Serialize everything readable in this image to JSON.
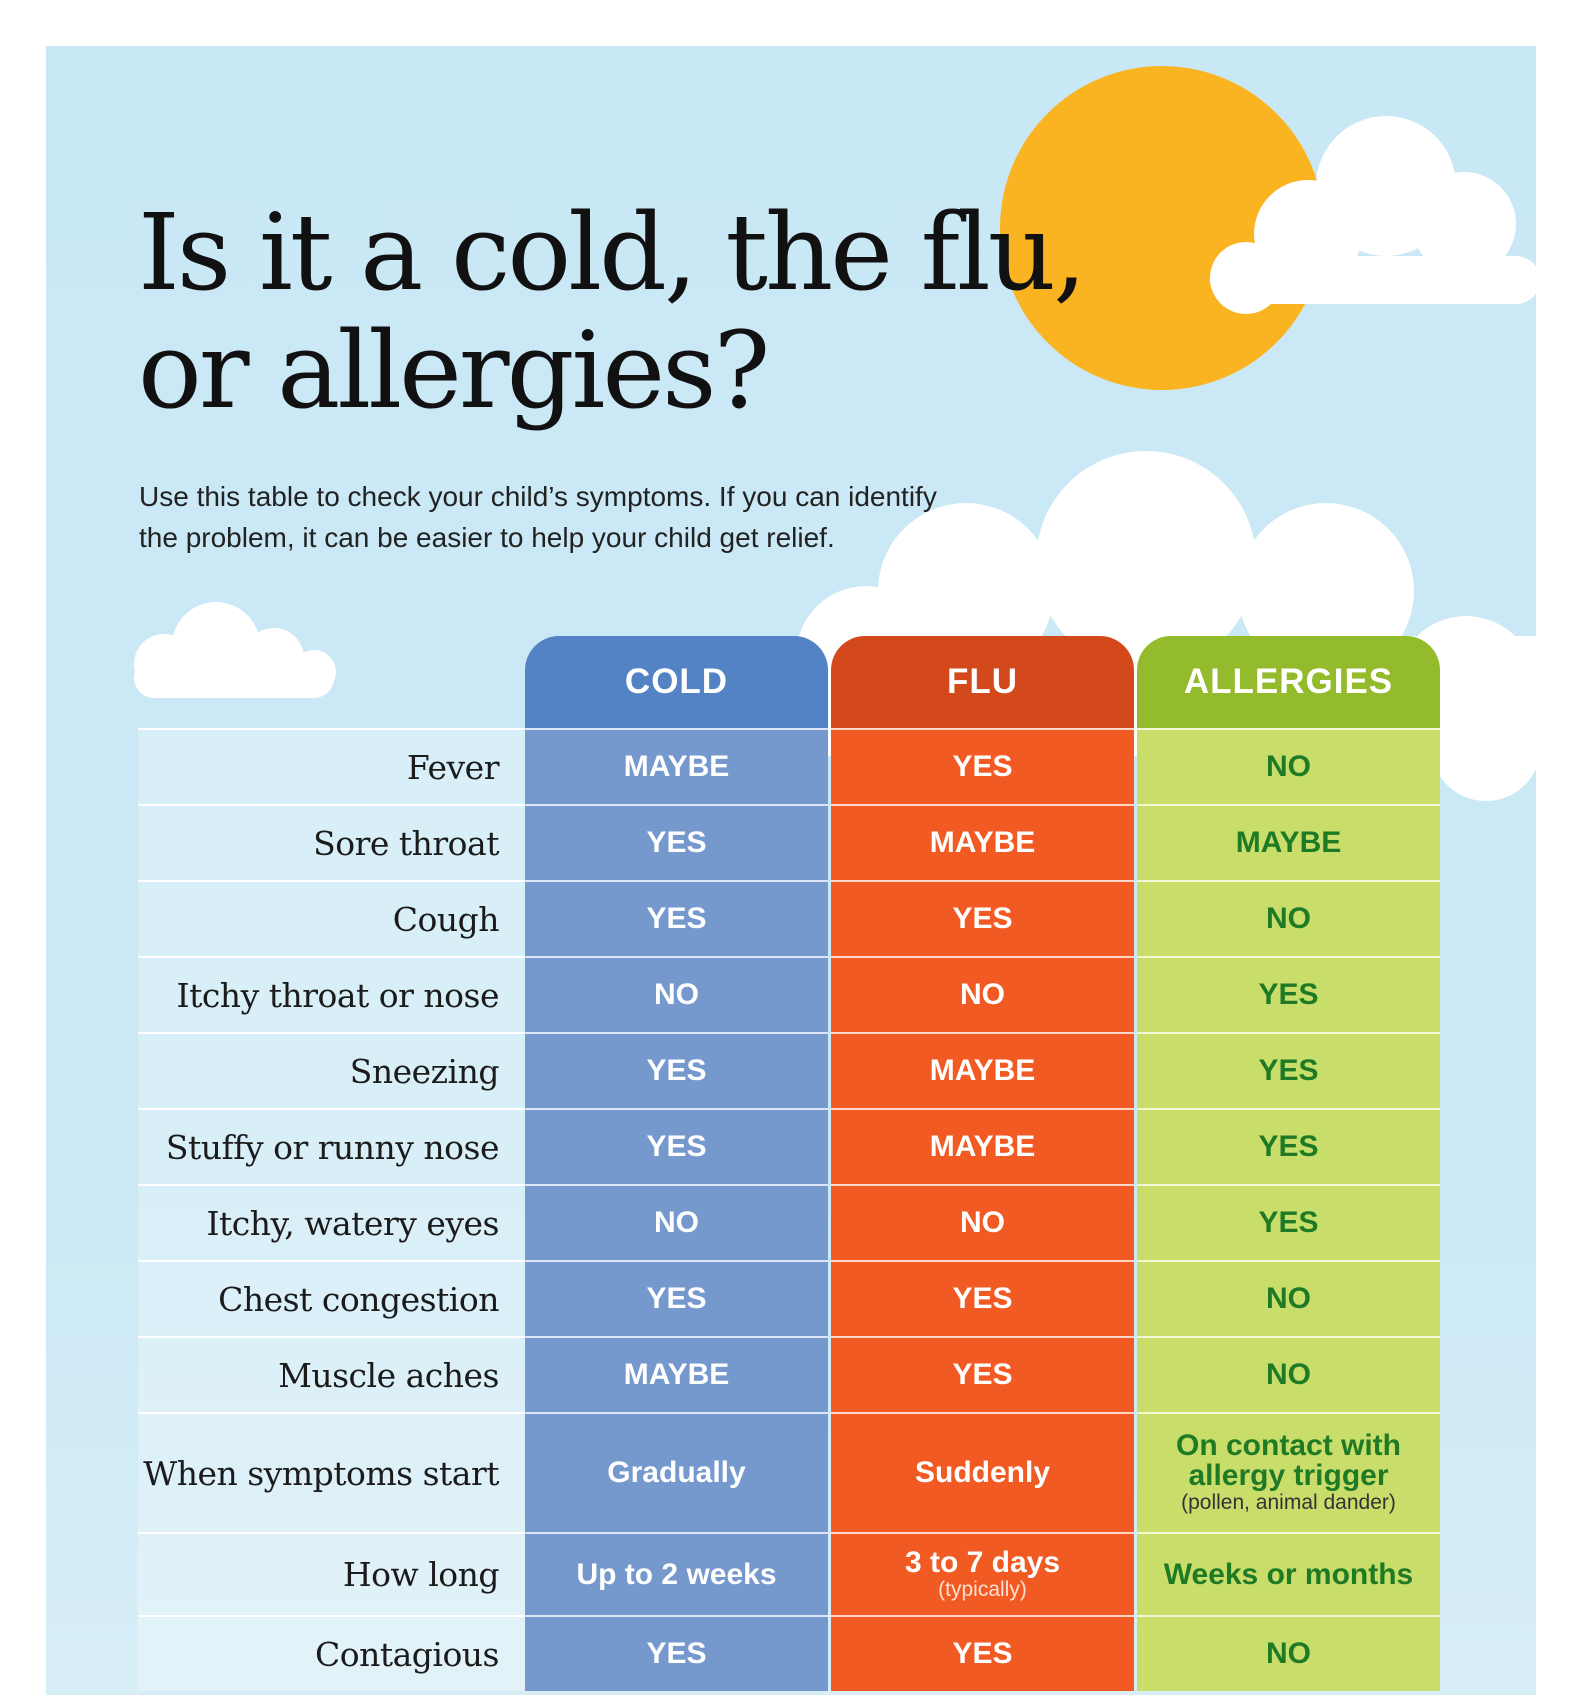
{
  "title_line1": "Is it a cold, the flu,",
  "title_line2": "or allergies?",
  "subtitle_line1": "Use this table to check your child’s symptoms. If you can identify",
  "subtitle_line2": "the problem, it can be easier to help your child get relief.",
  "colors": {
    "sky": "#c9e8f5",
    "sun": "#fbb421",
    "cold_header": "#5383c4",
    "cold_cell": "#7598cd",
    "flu_header": "#d3491c",
    "flu_cell": "#f15a22",
    "allergies_header": "#94bb2b",
    "allergies_cell": "#c9dd6a",
    "allergies_text": "#1e7a25"
  },
  "decorations": [
    "sun-icon",
    "cloud-icon"
  ],
  "headers": [
    "COLD",
    "FLU",
    "ALLERGIES"
  ],
  "rows": [
    {
      "symptom": "Fever",
      "cold": "MAYBE",
      "flu": "YES",
      "allergies": "NO"
    },
    {
      "symptom": "Sore throat",
      "cold": "YES",
      "flu": "MAYBE",
      "allergies": "MAYBE"
    },
    {
      "symptom": "Cough",
      "cold": "YES",
      "flu": "YES",
      "allergies": "NO"
    },
    {
      "symptom": "Itchy throat or nose",
      "cold": "NO",
      "flu": "NO",
      "allergies": "YES"
    },
    {
      "symptom": "Sneezing",
      "cold": "YES",
      "flu": "MAYBE",
      "allergies": "YES"
    },
    {
      "symptom": "Stuffy or runny nose",
      "cold": "YES",
      "flu": "MAYBE",
      "allergies": "YES"
    },
    {
      "symptom": "Itchy, watery eyes",
      "cold": "NO",
      "flu": "NO",
      "allergies": "YES"
    },
    {
      "symptom": "Chest congestion",
      "cold": "YES",
      "flu": "YES",
      "allergies": "NO"
    },
    {
      "symptom": "Muscle aches",
      "cold": "MAYBE",
      "flu": "YES",
      "allergies": "NO"
    },
    {
      "symptom": "When symptoms start",
      "cold": "Gradually",
      "flu": "Suddenly",
      "allergies": "On contact with allergy trigger",
      "allergies_note": "(pollen, animal dander)"
    },
    {
      "symptom": "How long",
      "cold": "Up to 2 weeks",
      "flu": "3 to 7 days",
      "flu_note": "(typically)",
      "allergies": "Weeks or months"
    },
    {
      "symptom": "Contagious",
      "cold": "YES",
      "flu": "YES",
      "allergies": "NO"
    }
  ]
}
